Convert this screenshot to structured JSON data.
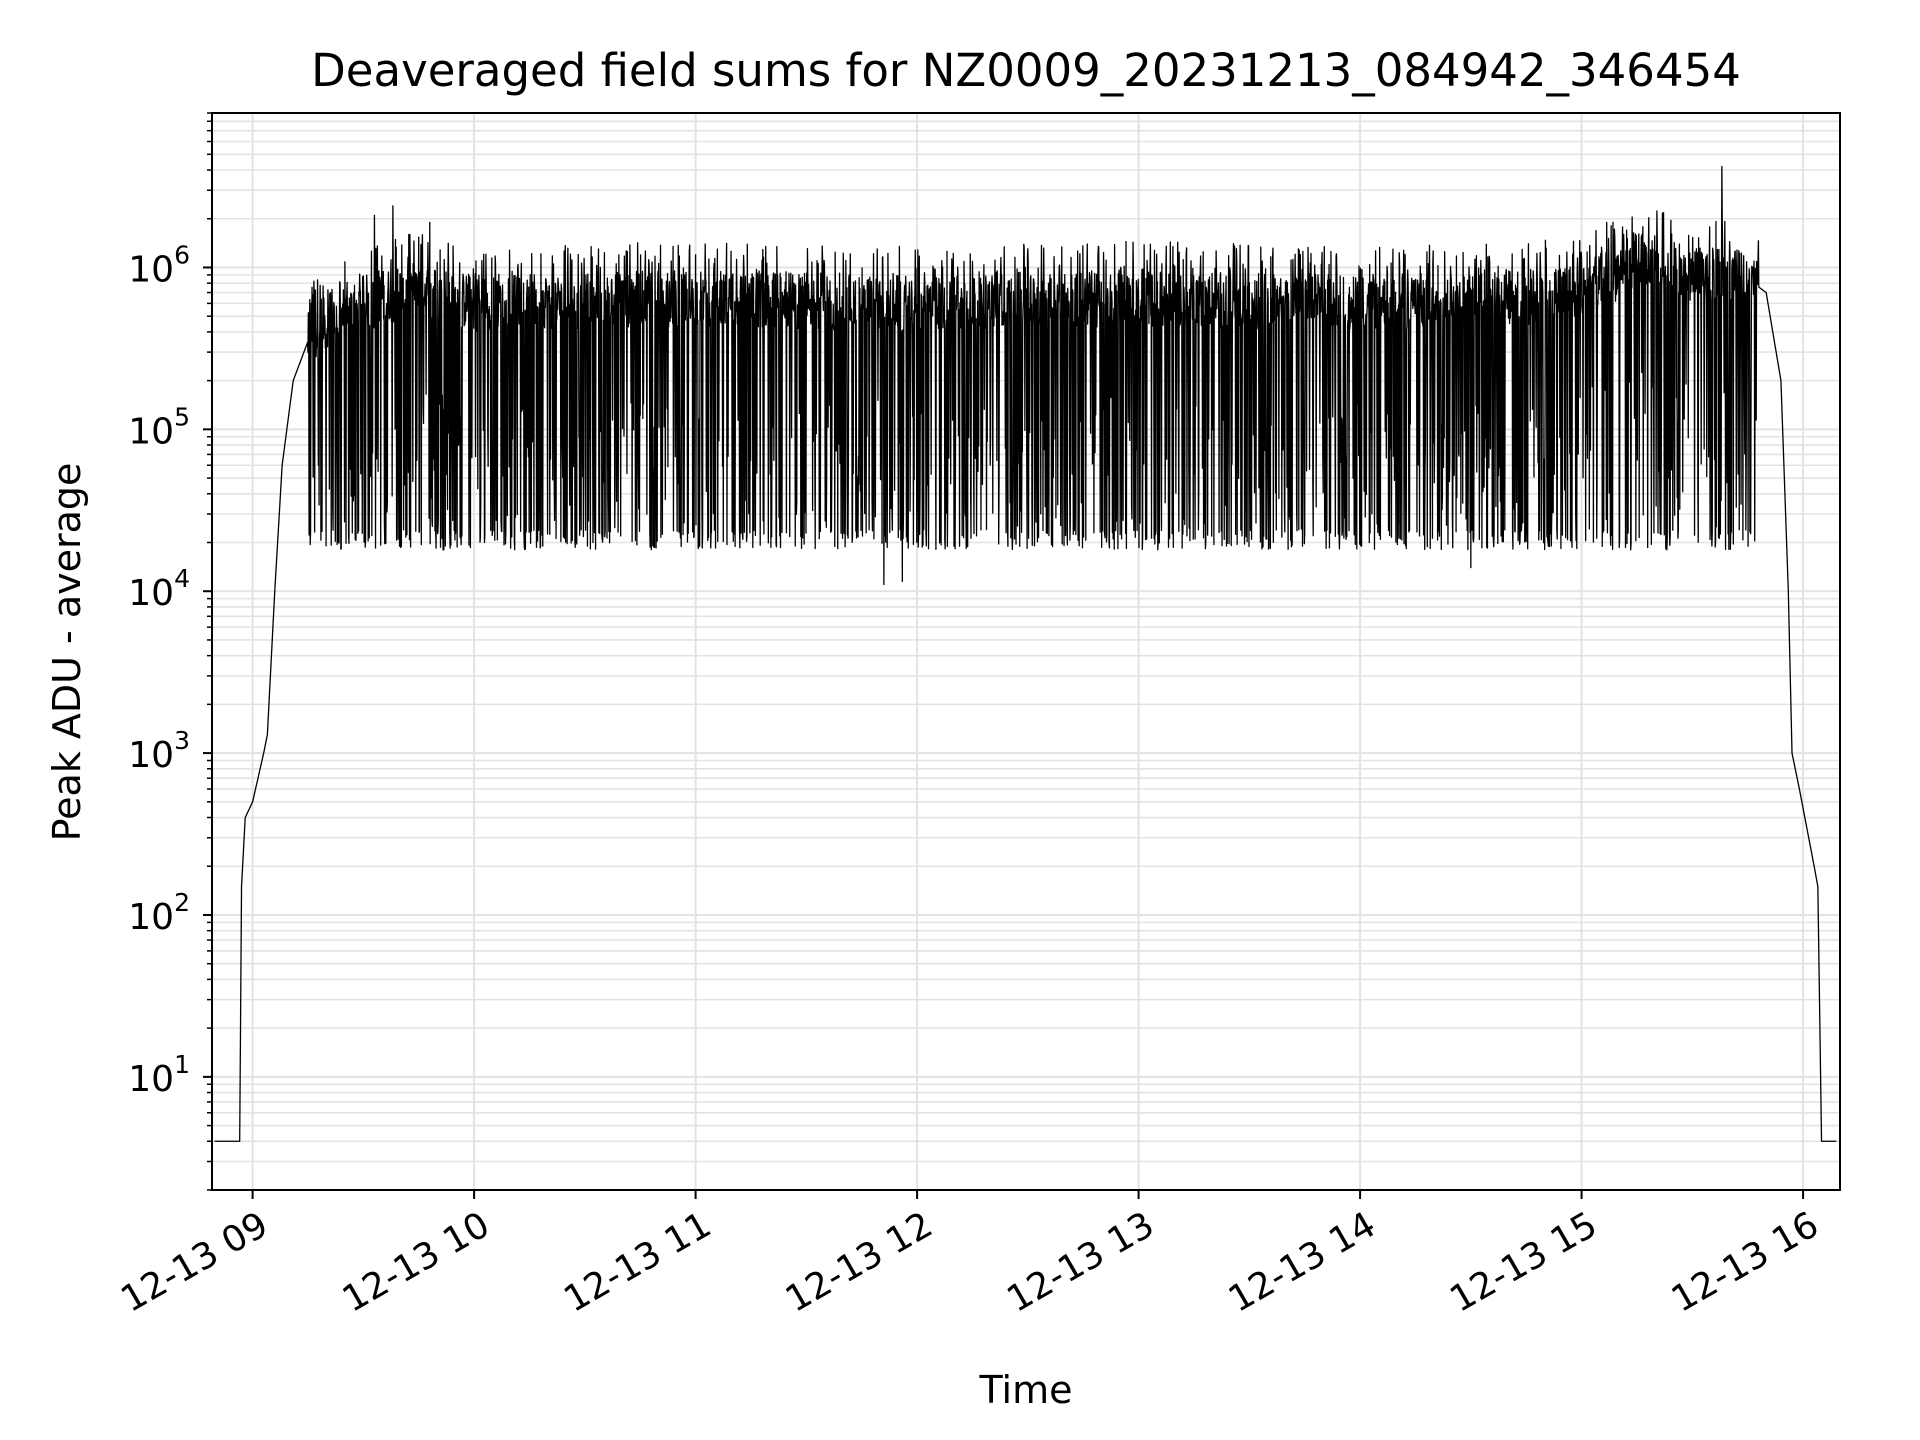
{
  "chart_data": {
    "type": "line",
    "title": "Deaveraged field sums for NZ0009_20231213_084942_346454",
    "xlabel": "Time",
    "ylabel": "Peak ADU - average",
    "yscale": "log",
    "grid": true,
    "line_color": "#000000",
    "grid_color": "#e3e3e3",
    "xlim": [
      "2023-12-13 08:49",
      "2023-12-13 16:10"
    ],
    "ylim": [
      2,
      9000000
    ],
    "x_ticks": [
      {
        "t": "2023-12-13 09:00",
        "label": "12-13 09"
      },
      {
        "t": "2023-12-13 10:00",
        "label": "12-13 10"
      },
      {
        "t": "2023-12-13 11:00",
        "label": "12-13 11"
      },
      {
        "t": "2023-12-13 12:00",
        "label": "12-13 12"
      },
      {
        "t": "2023-12-13 13:00",
        "label": "12-13 13"
      },
      {
        "t": "2023-12-13 14:00",
        "label": "12-13 14"
      },
      {
        "t": "2023-12-13 15:00",
        "label": "12-13 15"
      },
      {
        "t": "2023-12-13 16:00",
        "label": "12-13 16"
      }
    ],
    "y_ticks": [
      {
        "value": 10,
        "base": "10",
        "exp": "1"
      },
      {
        "value": 100,
        "base": "10",
        "exp": "2"
      },
      {
        "value": 1000,
        "base": "10",
        "exp": "3"
      },
      {
        "value": 10000,
        "base": "10",
        "exp": "4"
      },
      {
        "value": 100000,
        "base": "10",
        "exp": "5"
      },
      {
        "value": 1000000,
        "base": "10",
        "exp": "6"
      }
    ],
    "series": [
      {
        "envelope": [
          {
            "t": "2023-12-13 08:49:42",
            "y": 4
          },
          {
            "t": "2023-12-13 08:56:30",
            "y": 4
          },
          {
            "t": "2023-12-13 08:57:00",
            "y": 150
          },
          {
            "t": "2023-12-13 08:58:00",
            "y": 400
          },
          {
            "t": "2023-12-13 09:00:00",
            "y": 500
          },
          {
            "t": "2023-12-13 09:03:00",
            "y": 1000
          },
          {
            "t": "2023-12-13 09:04:00",
            "y": 1300
          },
          {
            "t": "2023-12-13 09:06:00",
            "y": 10000
          },
          {
            "t": "2023-12-13 09:08:00",
            "y": 60000
          },
          {
            "t": "2023-12-13 09:11:00",
            "y": 200000
          },
          {
            "t": "2023-12-13 09:15:00",
            "y": 350000
          },
          {
            "t": "2023-12-13 09:20:00",
            "y": 450000
          },
          {
            "t": "2023-12-13 09:30:00",
            "y": 600000
          },
          {
            "t": "2023-12-13 09:45:00",
            "y": 750000
          },
          {
            "t": "2023-12-13 10:00:00",
            "y": 600000
          },
          {
            "t": "2023-12-13 11:00:00",
            "y": 650000
          },
          {
            "t": "2023-12-13 12:00:00",
            "y": 600000
          },
          {
            "t": "2023-12-13 13:00:00",
            "y": 650000
          },
          {
            "t": "2023-12-13 14:00:00",
            "y": 600000
          },
          {
            "t": "2023-12-13 14:45:00",
            "y": 650000
          },
          {
            "t": "2023-12-13 15:00:00",
            "y": 700000
          },
          {
            "t": "2023-12-13 15:15:00",
            "y": 1100000
          },
          {
            "t": "2023-12-13 15:30:00",
            "y": 900000
          },
          {
            "t": "2023-12-13 15:45:00",
            "y": 850000
          },
          {
            "t": "2023-12-13 15:50:00",
            "y": 700000
          },
          {
            "t": "2023-12-13 15:54:00",
            "y": 200000
          },
          {
            "t": "2023-12-13 15:56:00",
            "y": 10000
          },
          {
            "t": "2023-12-13 15:57:00",
            "y": 1000
          },
          {
            "t": "2023-12-13 15:59:00",
            "y": 600
          },
          {
            "t": "2023-12-13 16:03:00",
            "y": 200
          },
          {
            "t": "2023-12-13 16:04:00",
            "y": 150
          },
          {
            "t": "2023-12-13 16:05:00",
            "y": 4
          },
          {
            "t": "2023-12-13 16:09:00",
            "y": 4
          }
        ],
        "noisy_segment": [
          "2023-12-13 09:15:00",
          "2023-12-13 15:48:00"
        ],
        "spikes_high": [
          {
            "t": "2023-12-13 09:33:00",
            "y": 2100000
          },
          {
            "t": "2023-12-13 09:38:00",
            "y": 2400000
          },
          {
            "t": "2023-12-13 09:48:00",
            "y": 1900000
          },
          {
            "t": "2023-12-13 15:38:00",
            "y": 4200000
          }
        ],
        "spikes_low": [
          {
            "t": "2023-12-13 09:34:00",
            "y": 55000
          },
          {
            "t": "2023-12-13 11:51:00",
            "y": 11000
          },
          {
            "t": "2023-12-13 11:56:00",
            "y": 11500
          },
          {
            "t": "2023-12-13 14:30:00",
            "y": 14000
          },
          {
            "t": "2023-12-13 15:36:00",
            "y": 65000
          }
        ]
      }
    ]
  }
}
